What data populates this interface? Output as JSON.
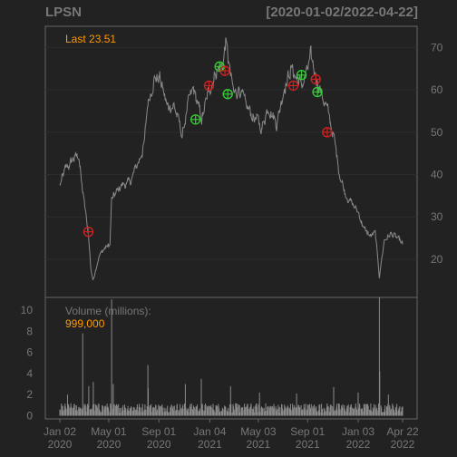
{
  "header": {
    "symbol": "LPSN",
    "range": "[2020-01-02/2022-04-22]"
  },
  "colors": {
    "background": "#222222",
    "panel_border": "#666666",
    "grid": "#2c2c2c",
    "price_line": "#8a8a8a",
    "volume_bars": "#8a8a8a",
    "axis_text": "#777777",
    "highlight": "#ff9900",
    "buy_marker": "#33cc33",
    "sell_marker": "#cc2222"
  },
  "chart_data": {
    "type": "line",
    "price_panel": {
      "last_label": "Last 23.51",
      "y_ticks": [
        20,
        30,
        40,
        50,
        60,
        70
      ],
      "ylim": [
        11,
        75
      ],
      "grid": true,
      "anchors": [
        [
          "2020-01-02",
          37.5
        ],
        [
          "2020-01-15",
          41
        ],
        [
          "2020-02-03",
          43.5
        ],
        [
          "2020-02-18",
          44.5
        ],
        [
          "2020-02-24",
          38
        ],
        [
          "2020-03-05",
          31
        ],
        [
          "2020-03-12",
          26
        ],
        [
          "2020-03-18",
          18
        ],
        [
          "2020-03-23",
          15
        ],
        [
          "2020-04-06",
          20.5
        ],
        [
          "2020-04-20",
          22.5
        ],
        [
          "2020-05-04",
          23.5
        ],
        [
          "2020-05-08",
          34
        ],
        [
          "2020-06-01",
          37.5
        ],
        [
          "2020-06-22",
          38
        ],
        [
          "2020-07-13",
          43
        ],
        [
          "2020-07-27",
          47
        ],
        [
          "2020-08-05",
          57
        ],
        [
          "2020-08-19",
          62.5
        ],
        [
          "2020-09-03",
          63
        ],
        [
          "2020-09-21",
          56
        ],
        [
          "2020-10-08",
          56.5
        ],
        [
          "2020-10-29",
          49
        ],
        [
          "2020-11-10",
          56
        ],
        [
          "2020-11-25",
          60
        ],
        [
          "2020-12-15",
          53
        ],
        [
          "2021-01-04",
          60.5
        ],
        [
          "2021-01-20",
          64.5
        ],
        [
          "2021-02-05",
          66
        ],
        [
          "2021-02-12",
          71.5
        ],
        [
          "2021-02-24",
          63
        ],
        [
          "2021-03-05",
          58.5
        ],
        [
          "2021-03-17",
          61
        ],
        [
          "2021-04-01",
          56
        ],
        [
          "2021-04-20",
          54
        ],
        [
          "2021-05-12",
          51
        ],
        [
          "2021-05-28",
          56.5
        ],
        [
          "2021-06-17",
          52
        ],
        [
          "2021-07-06",
          61
        ],
        [
          "2021-07-23",
          65
        ],
        [
          "2021-08-03",
          63
        ],
        [
          "2021-08-17",
          61
        ],
        [
          "2021-08-31",
          64
        ],
        [
          "2021-09-08",
          67.5
        ],
        [
          "2021-09-21",
          63.5
        ],
        [
          "2021-10-04",
          59.5
        ],
        [
          "2021-10-20",
          55
        ],
        [
          "2021-11-03",
          49.5
        ],
        [
          "2021-11-17",
          41
        ],
        [
          "2021-12-01",
          36
        ],
        [
          "2021-12-16",
          33.5
        ],
        [
          "2022-01-04",
          31
        ],
        [
          "2022-01-18",
          27
        ],
        [
          "2022-02-02",
          25.5
        ],
        [
          "2022-02-14",
          26
        ],
        [
          "2022-02-24",
          16
        ],
        [
          "2022-03-08",
          24.5
        ],
        [
          "2022-03-24",
          26
        ],
        [
          "2022-04-08",
          25
        ],
        [
          "2022-04-22",
          23.51
        ]
      ],
      "markers": [
        {
          "date": "2020-03-12",
          "price": 26.5,
          "kind": "sell"
        },
        {
          "date": "2020-11-30",
          "price": 53,
          "kind": "buy"
        },
        {
          "date": "2021-01-02",
          "price": 61,
          "kind": "sell"
        },
        {
          "date": "2021-01-28",
          "price": 65.5,
          "kind": "buy"
        },
        {
          "date": "2021-02-10",
          "price": 64.5,
          "kind": "sell"
        },
        {
          "date": "2021-02-17",
          "price": 59,
          "kind": "buy"
        },
        {
          "date": "2021-07-28",
          "price": 61,
          "kind": "sell"
        },
        {
          "date": "2021-08-17",
          "price": 63.5,
          "kind": "buy"
        },
        {
          "date": "2021-09-21",
          "price": 62.5,
          "kind": "sell"
        },
        {
          "date": "2021-09-25",
          "price": 59.5,
          "kind": "buy"
        },
        {
          "date": "2021-10-19",
          "price": 50,
          "kind": "sell"
        }
      ]
    },
    "volume_panel": {
      "label": "Volume (millions):",
      "value_label": "999,000",
      "y_ticks": [
        0,
        2,
        4,
        6,
        8,
        10
      ],
      "ylim": [
        -0.3,
        11.2
      ],
      "baseline_millions": 0.7,
      "spikes": [
        [
          "2020-01-21",
          2.0
        ],
        [
          "2020-02-27",
          7.8
        ],
        [
          "2020-03-13",
          2.8
        ],
        [
          "2020-03-24",
          3.2
        ],
        [
          "2020-05-08",
          11.0
        ],
        [
          "2020-05-12",
          3.0
        ],
        [
          "2020-08-05",
          4.8
        ],
        [
          "2020-08-06",
          2.6
        ],
        [
          "2020-11-05",
          3.0
        ],
        [
          "2020-12-14",
          3.5
        ],
        [
          "2021-02-24",
          2.8
        ],
        [
          "2021-05-06",
          2.2
        ],
        [
          "2021-08-05",
          2.1
        ],
        [
          "2021-11-04",
          2.7
        ],
        [
          "2022-01-03",
          2.2
        ],
        [
          "2022-02-24",
          11.2
        ],
        [
          "2022-02-25",
          4.2
        ],
        [
          "2022-03-18",
          2.0
        ]
      ]
    },
    "x_axis": {
      "start": "2020-01-02",
      "end": "2022-04-22",
      "ticks": [
        {
          "date": "2020-01-02",
          "line1": "Jan 02",
          "line2": "2020"
        },
        {
          "date": "2020-05-01",
          "line1": "May 01",
          "line2": "2020"
        },
        {
          "date": "2020-09-01",
          "line1": "Sep 01",
          "line2": "2020"
        },
        {
          "date": "2021-01-04",
          "line1": "Jan 04",
          "line2": "2021"
        },
        {
          "date": "2021-05-03",
          "line1": "May 03",
          "line2": "2021"
        },
        {
          "date": "2021-09-01",
          "line1": "Sep 01",
          "line2": "2021"
        },
        {
          "date": "2022-01-03",
          "line1": "Jan 03",
          "line2": "2022"
        },
        {
          "date": "2022-04-22",
          "line1": "Apr 22",
          "line2": "2022"
        }
      ]
    }
  }
}
